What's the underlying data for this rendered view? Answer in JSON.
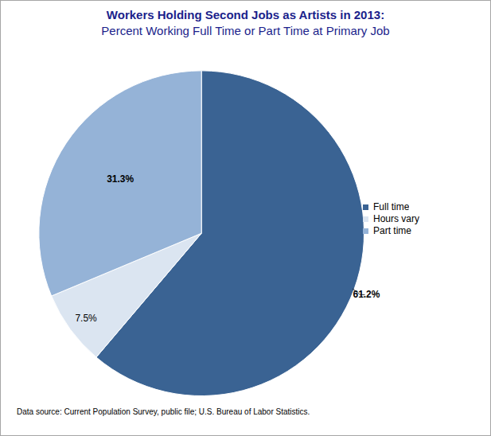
{
  "chart_data": {
    "type": "pie",
    "title": "Workers Holding Second Jobs as Artists in 2013:",
    "subtitle": "Percent Working Full Time or Part Time at Primary Job",
    "caption": "Data source: Current Population Survey, public file; U.S. Bureau of Labor Statistics.",
    "categories": [
      "Full time",
      "Hours vary",
      "Part time"
    ],
    "values": [
      61.2,
      7.5,
      31.3
    ],
    "value_labels": [
      "61.2%",
      "7.5%",
      "31.3%"
    ],
    "colors": [
      "#3a6393",
      "#dbe5f1",
      "#95b3d7"
    ],
    "data_labels": true,
    "legend": "right"
  }
}
